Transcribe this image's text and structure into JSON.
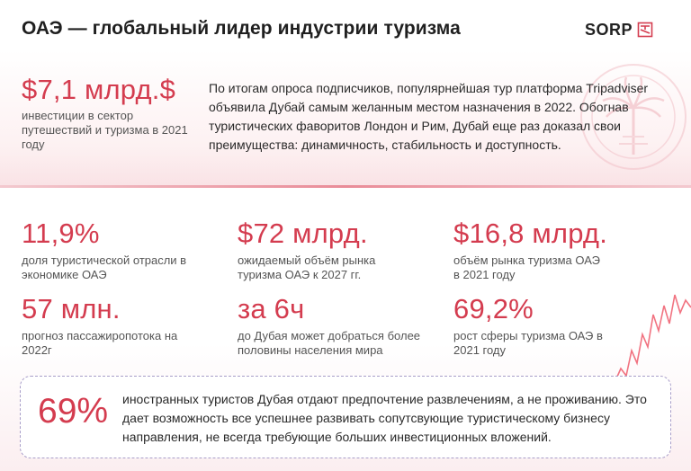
{
  "header": {
    "title": "ОАЭ — глобальный лидер индустрии туризма",
    "logo_text": "SORP"
  },
  "top": {
    "value": "$7,1 млрд.$",
    "caption": "инвестиции в сектор путешествий и туризма в 2021 году",
    "description": "По итогам опроса подписчиков, популярнейшая тур платформа Tripadviser объявила Дубай самым желанным местом назначения в 2022. Обогнав туристических фаворитов Лондон и Рим, Дубай еще раз доказал свои преимущества: динамичность, стабильность и доступность."
  },
  "stats": [
    {
      "value": "11,9%",
      "caption": "доля туристической отрасли в экономике ОАЭ"
    },
    {
      "value": "$72 млрд.",
      "caption": "ожидаемый объём рынка туризма ОАЭ к 2027 гг."
    },
    {
      "value": "$16,8 млрд.",
      "caption": "объём рынка туризма ОАЭ в 2021 году"
    },
    {
      "value": "57 млн.",
      "caption": "прогноз пассажиропотока на 2022г"
    },
    {
      "value": "за 6ч",
      "caption": "до Дубая может добраться более половины населения мира"
    },
    {
      "value": "69,2%",
      "caption": "рост сферы туризма ОАЭ в 2021 году"
    }
  ],
  "highlight": {
    "value": "69%",
    "text": "иностранных туристов Дубая отдают предпочтение развлечениям, а не проживанию. Это дает возможность все успешнее развивать сопутсвующие туристическому бизнесу направления, не всегда требующие больших инвестиционных вложений."
  },
  "colors": {
    "accent": "#d43c4f",
    "band": "#f9e2e5",
    "box_border": "#a99ec9"
  },
  "icons": {
    "logo": "sorp-logo-icon",
    "decor": "palm-emblem-icon",
    "trend": "trend-line-icon"
  }
}
